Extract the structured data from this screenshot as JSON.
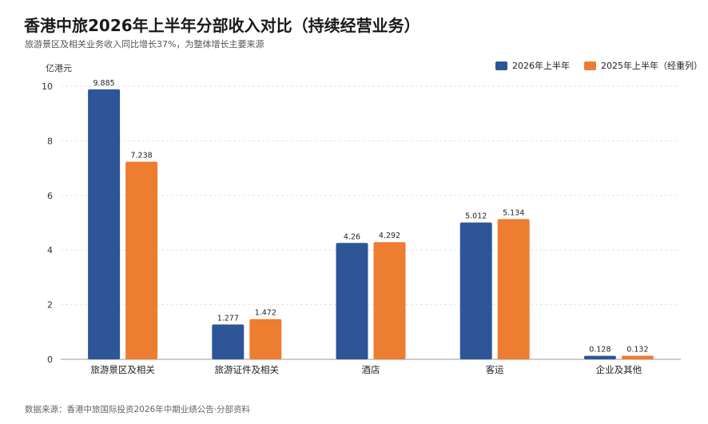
{
  "title": "香港中旅2026年上半年分部收入对比（持续经营业务）",
  "subtitle": "旅游景区及相关业务收入同比增长37%，为整体增长主要来源",
  "source": "数据来源：香港中旅国际投资2026年中期业绩公告·分部资料",
  "colors": {
    "series_2026": "#2e5597",
    "series_2025": "#ed7d31",
    "grid": "#e3e3e3",
    "axis": "#999999"
  },
  "chart_data": {
    "type": "bar",
    "categories": [
      "旅游景区及相关",
      "旅游证件及相关",
      "酒店",
      "客运",
      "企业及其他"
    ],
    "series": [
      {
        "name": "2026年上半年",
        "values": [
          9.885,
          1.277,
          4.26,
          5.012,
          0.128
        ],
        "labels": [
          "9.885",
          "1.277",
          "4.26",
          "5.012",
          "0.128"
        ]
      },
      {
        "name": "2025年上半年（经重列）",
        "values": [
          7.238,
          1.472,
          4.292,
          5.134,
          0.132
        ],
        "labels": [
          "7.238",
          "1.472",
          "4.292",
          "5.134",
          "0.132"
        ]
      }
    ],
    "ylabel": "亿港元",
    "ylim": [
      0,
      10
    ],
    "yticks": [
      0,
      2,
      4,
      6,
      8,
      10
    ],
    "grid": true,
    "legend_position": "top-right"
  }
}
